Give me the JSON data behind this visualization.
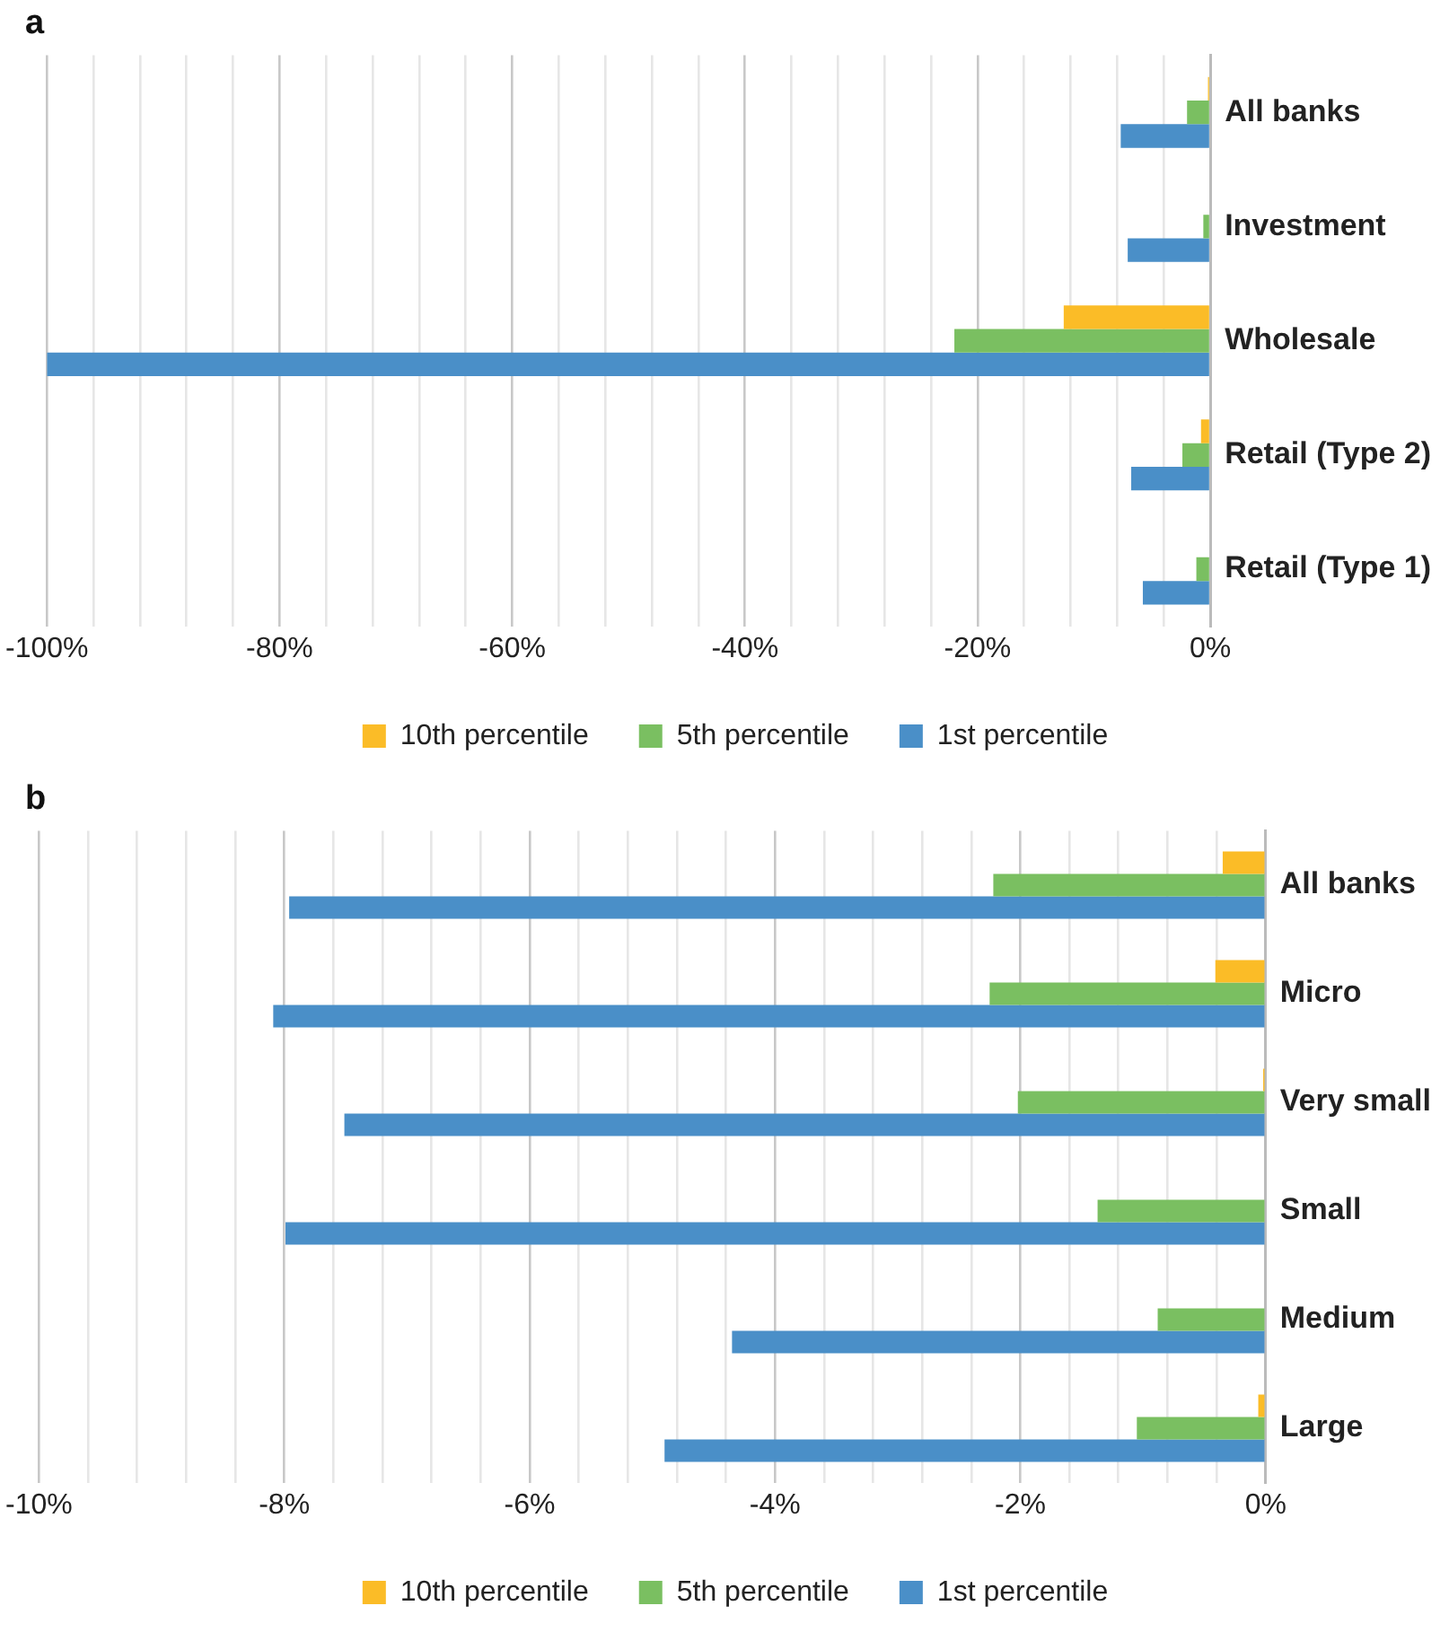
{
  "chart_data": [
    {
      "type": "bar",
      "orientation": "horizontal",
      "title": "a",
      "categories": [
        "All banks",
        "Investment",
        "Wholesale",
        "Retail (Type 2)",
        "Retail (Type 1)"
      ],
      "series": [
        {
          "name": "10th percentile",
          "color": "#fbbc27",
          "values": [
            -0.2,
            0,
            -12.6,
            -0.8,
            0
          ]
        },
        {
          "name": "5th percentile",
          "color": "#7abf61",
          "values": [
            -2.0,
            -0.6,
            -22.0,
            -2.4,
            -1.2
          ]
        },
        {
          "name": "1st percentile",
          "color": "#4a8fc8",
          "values": [
            -7.7,
            -7.1,
            -100,
            -6.8,
            -5.8
          ]
        }
      ],
      "xlim": [
        -100,
        0
      ],
      "xticks": [
        {
          "value": -100,
          "label": "-100%"
        },
        {
          "value": -96,
          "label": null
        },
        {
          "value": -92,
          "label": null
        },
        {
          "value": -88,
          "label": null
        },
        {
          "value": -84,
          "label": null
        },
        {
          "value": -80,
          "label": "-80%"
        },
        {
          "value": -76,
          "label": null
        },
        {
          "value": -72,
          "label": null
        },
        {
          "value": -68,
          "label": null
        },
        {
          "value": -64,
          "label": null
        },
        {
          "value": -60,
          "label": "-60%"
        },
        {
          "value": -56,
          "label": null
        },
        {
          "value": -52,
          "label": null
        },
        {
          "value": -48,
          "label": null
        },
        {
          "value": -44,
          "label": null
        },
        {
          "value": -40,
          "label": "-40%"
        },
        {
          "value": -36,
          "label": null
        },
        {
          "value": -32,
          "label": null
        },
        {
          "value": -28,
          "label": null
        },
        {
          "value": -24,
          "label": null
        },
        {
          "value": -20,
          "label": "-20%"
        },
        {
          "value": -16,
          "label": null
        },
        {
          "value": -12,
          "label": null
        },
        {
          "value": -8,
          "label": null
        },
        {
          "value": -4,
          "label": null
        },
        {
          "value": 0,
          "label": "0%"
        }
      ],
      "grid": "x",
      "legend": "bottom"
    },
    {
      "type": "bar",
      "orientation": "horizontal",
      "title": "b",
      "categories": [
        "All banks",
        "Micro",
        "Very small",
        "Small",
        "Medium",
        "Large"
      ],
      "series": [
        {
          "name": "10th percentile",
          "color": "#fbbc27",
          "values": [
            -0.35,
            -0.41,
            -0.02,
            0,
            0,
            -0.06
          ]
        },
        {
          "name": "5th percentile",
          "color": "#7abf61",
          "values": [
            -2.22,
            -2.25,
            -2.02,
            -1.37,
            -0.88,
            -1.05
          ]
        },
        {
          "name": "1st percentile",
          "color": "#4a8fc8",
          "values": [
            -7.96,
            -8.09,
            -7.51,
            -7.99,
            -4.35,
            -4.9
          ]
        }
      ],
      "xlim": [
        -10,
        0
      ],
      "xticks": [
        {
          "value": -10,
          "label": "-10%"
        },
        {
          "value": -9.6,
          "label": null
        },
        {
          "value": -9.2,
          "label": null
        },
        {
          "value": -8.8,
          "label": null
        },
        {
          "value": -8.4,
          "label": null
        },
        {
          "value": -8,
          "label": "-8%"
        },
        {
          "value": -7.6,
          "label": null
        },
        {
          "value": -7.2,
          "label": null
        },
        {
          "value": -6.8,
          "label": null
        },
        {
          "value": -6.4,
          "label": null
        },
        {
          "value": -6,
          "label": "-6%"
        },
        {
          "value": -5.6,
          "label": null
        },
        {
          "value": -5.2,
          "label": null
        },
        {
          "value": -4.8,
          "label": null
        },
        {
          "value": -4.4,
          "label": null
        },
        {
          "value": -4,
          "label": "-4%"
        },
        {
          "value": -3.6,
          "label": null
        },
        {
          "value": -3.2,
          "label": null
        },
        {
          "value": -2.8,
          "label": null
        },
        {
          "value": -2.4,
          "label": null
        },
        {
          "value": -2,
          "label": "-2%"
        },
        {
          "value": -1.6,
          "label": null
        },
        {
          "value": -1.2,
          "label": null
        },
        {
          "value": -0.8,
          "label": null
        },
        {
          "value": -0.4,
          "label": null
        },
        {
          "value": 0,
          "label": "0%"
        }
      ],
      "grid": "x",
      "legend": "bottom"
    }
  ]
}
